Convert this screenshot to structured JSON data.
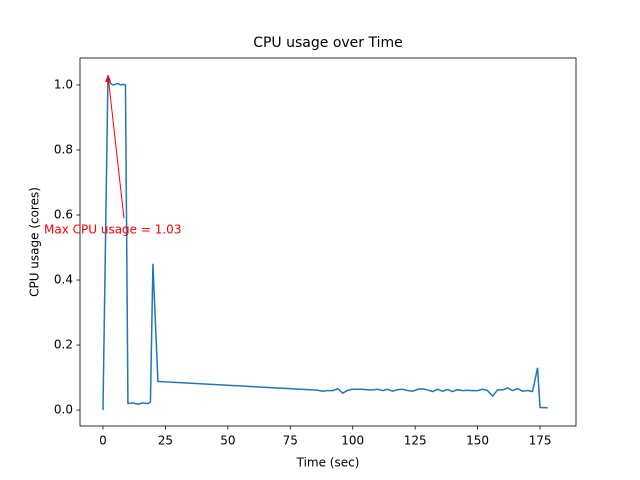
{
  "chart_data": {
    "type": "line",
    "title": "CPU usage over Time",
    "x_label": "Time (sec)",
    "y_label": "CPU usage (cores)",
    "x": [
      0,
      2,
      3,
      4,
      5,
      6,
      7,
      8,
      9,
      10,
      12,
      14,
      16,
      18,
      19,
      20,
      22,
      84,
      86,
      88,
      90,
      92,
      94,
      96,
      98,
      100,
      102,
      104,
      106,
      108,
      110,
      112,
      114,
      116,
      118,
      120,
      122,
      124,
      126,
      128,
      130,
      132,
      134,
      136,
      138,
      140,
      142,
      144,
      146,
      148,
      150,
      152,
      154,
      156,
      158,
      160,
      162,
      164,
      166,
      168,
      170,
      172,
      174,
      175,
      178
    ],
    "series": [
      {
        "name": "CPU usage",
        "color": "#1f77b4",
        "values": [
          0,
          1.03,
          1.005,
          1.0,
          1.002,
          1.005,
          1.0,
          1.002,
          1.0,
          0.02,
          0.022,
          0.018,
          0.022,
          0.02,
          0.025,
          0.45,
          0.088,
          0.062,
          0.061,
          0.058,
          0.06,
          0.06,
          0.066,
          0.052,
          0.061,
          0.064,
          0.064,
          0.064,
          0.062,
          0.062,
          0.064,
          0.06,
          0.064,
          0.058,
          0.063,
          0.064,
          0.06,
          0.058,
          0.064,
          0.065,
          0.062,
          0.057,
          0.064,
          0.058,
          0.063,
          0.057,
          0.063,
          0.06,
          0.061,
          0.06,
          0.06,
          0.064,
          0.06,
          0.043,
          0.062,
          0.062,
          0.068,
          0.06,
          0.066,
          0.058,
          0.06,
          0.057,
          0.13,
          0.008,
          0.007
        ]
      }
    ],
    "annotation": {
      "text": "Max CPU usage = 1.03",
      "x": 2,
      "y": 1.03,
      "color": "red"
    },
    "xlim": [
      -9.2,
      189.4
    ],
    "ylim": [
      -0.049,
      1.083
    ],
    "xticks": [
      0,
      25,
      50,
      75,
      100,
      125,
      150,
      175
    ],
    "yticks": [
      {
        "value": 0,
        "label": "0.0"
      },
      0.2,
      0.4,
      0.6,
      0.8,
      {
        "value": 1,
        "label": "1.0"
      }
    ]
  }
}
